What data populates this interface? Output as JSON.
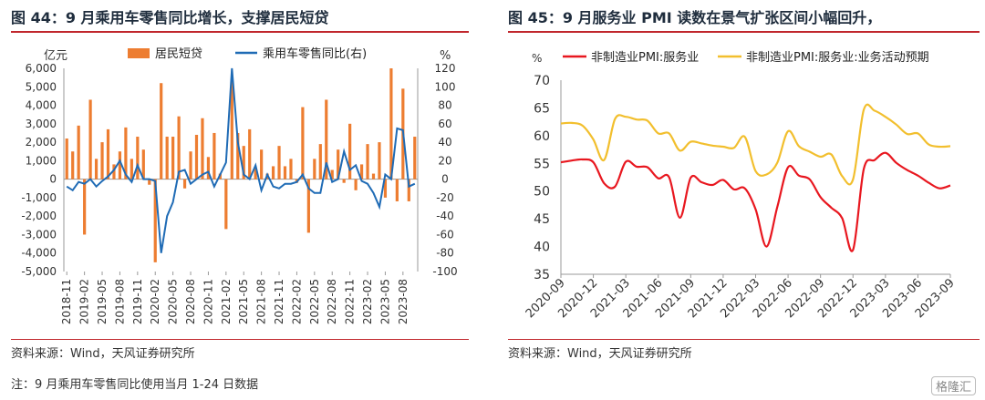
{
  "left": {
    "title": "图 44：9 月乘用车零售同比增长，支撑居民短贷",
    "source": "资料来源：Wind，天风证券研究所",
    "note": "注：9 月乘用车零售同比使用当月 1-24 日数据"
  },
  "right": {
    "title": "图 45：9 月服务业 PMI 读数在景气扩张区间小幅回升，",
    "source": "资料来源：Wind，天风证券研究所"
  },
  "watermark": "格隆汇",
  "chart_data": [
    {
      "type": "bar+line",
      "left_unit": "亿元",
      "right_unit": "%",
      "ylim_left": [
        -5000,
        6000
      ],
      "ylim_right": [
        -100,
        120
      ],
      "yticks_left": [
        "6,000",
        "5,000",
        "4,000",
        "3,000",
        "2,000",
        "1,000",
        "0",
        "-1,000",
        "-2,000",
        "-3,000",
        "-4,000",
        "-5,000"
      ],
      "yticks_right": [
        "120",
        "100",
        "80",
        "60",
        "40",
        "20",
        "0",
        "-20",
        "-40",
        "-60",
        "-80",
        "-100"
      ],
      "x_tick_labels": [
        "2018-11",
        "2019-02",
        "2019-05",
        "2019-08",
        "2019-11",
        "2020-02",
        "2020-05",
        "2020-08",
        "2020-11",
        "2021-02",
        "2021-05",
        "2021-08",
        "2021-11",
        "2022-02",
        "2022-05",
        "2022-08",
        "2022-11",
        "2023-02",
        "2023-05",
        "2023-08"
      ],
      "legend_position": "top",
      "series": [
        {
          "name": "居民短贷",
          "kind": "bar",
          "color": "#ed7d31",
          "values": [
            2200,
            1500,
            2900,
            -3000,
            4300,
            1100,
            2000,
            2700,
            800,
            1500,
            2800,
            1100,
            2300,
            1600,
            -300,
            -4500,
            5200,
            2300,
            2300,
            3400,
            -500,
            1500,
            2400,
            3300,
            1200,
            2500,
            300,
            -2700,
            5300,
            2500,
            1800,
            2700,
            600,
            1600,
            300,
            700,
            1800,
            700,
            1100,
            -200,
            3900,
            -2900,
            1100,
            1900,
            4300,
            500,
            1600,
            -200,
            3000,
            -600,
            800,
            1900,
            300,
            2000,
            -1000,
            6000,
            -1200,
            4900,
            -1200,
            2300
          ]
        },
        {
          "name": "乘用车零售同比(右)",
          "kind": "line",
          "color": "#1f6bb5",
          "values": [
            -8,
            -12,
            -3,
            -5,
            0,
            -8,
            -2,
            3,
            10,
            20,
            5,
            -3,
            15,
            0,
            0,
            -2,
            -80,
            -40,
            -25,
            8,
            10,
            -5,
            0,
            5,
            8,
            -8,
            5,
            18,
            120,
            40,
            5,
            0,
            15,
            -12,
            5,
            -8,
            -10,
            -5,
            -5,
            -3,
            5,
            -10,
            -15,
            -15,
            18,
            -3,
            0,
            30,
            10,
            15,
            -2,
            -5,
            -15,
            -30,
            5,
            0,
            55,
            53,
            -8,
            -5
          ]
        }
      ]
    },
    {
      "type": "line",
      "ylabel": "%",
      "ylim": [
        35,
        70
      ],
      "yticks": [
        "70",
        "65",
        "60",
        "55",
        "50",
        "45",
        "40",
        "35"
      ],
      "x_tick_labels": [
        "2020-09",
        "2020-12",
        "2021-03",
        "2021-06",
        "2021-09",
        "2021-12",
        "2022-03",
        "2022-06",
        "2022-09",
        "2022-12",
        "2023-03",
        "2023-06",
        "2023-09"
      ],
      "legend_position": "top",
      "series": [
        {
          "name": "非制造业PMI:服务业",
          "color": "#e8171f",
          "values": [
            55.2,
            55.5,
            55.7,
            55.2,
            51.4,
            50.8,
            55.3,
            54.4,
            54.3,
            52.3,
            52.5,
            45.2,
            52.4,
            51.6,
            51.1,
            52.0,
            50.3,
            50.5,
            46.7,
            40.0,
            47.1,
            54.3,
            52.8,
            52.1,
            48.9,
            47.0,
            45.1,
            39.4,
            54.0,
            55.6,
            56.9,
            55.1,
            53.8,
            52.8,
            51.5,
            50.5,
            51.0
          ]
        },
        {
          "name": "非制造业PMI:服务业:业务活动预期",
          "color": "#f2bf2e",
          "values": [
            62.2,
            62.3,
            61.8,
            59.3,
            55.6,
            63.0,
            63.4,
            62.9,
            62.7,
            60.4,
            60.4,
            57.3,
            58.9,
            58.6,
            58.2,
            58.0,
            57.8,
            59.8,
            53.6,
            53.0,
            55.1,
            60.8,
            58.1,
            57.1,
            56.2,
            56.6,
            52.7,
            52.1,
            64.7,
            64.5,
            63.4,
            62.0,
            60.3,
            60.4,
            58.4,
            58.0,
            58.1
          ]
        }
      ]
    }
  ]
}
